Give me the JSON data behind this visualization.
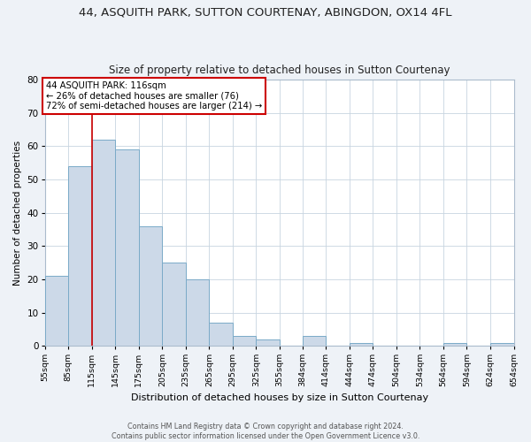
{
  "title": "44, ASQUITH PARK, SUTTON COURTENAY, ABINGDON, OX14 4FL",
  "subtitle": "Size of property relative to detached houses in Sutton Courtenay",
  "xlabel": "Distribution of detached houses by size in Sutton Courtenay",
  "ylabel": "Number of detached properties",
  "bar_values": [
    21,
    54,
    62,
    59,
    36,
    25,
    20,
    7,
    3,
    2,
    0,
    3,
    0,
    1,
    0,
    0,
    0,
    1,
    0,
    1
  ],
  "bin_labels": [
    "55sqm",
    "85sqm",
    "115sqm",
    "145sqm",
    "175sqm",
    "205sqm",
    "235sqm",
    "265sqm",
    "295sqm",
    "325sqm",
    "355sqm",
    "384sqm",
    "414sqm",
    "444sqm",
    "474sqm",
    "504sqm",
    "534sqm",
    "564sqm",
    "594sqm",
    "624sqm",
    "654sqm"
  ],
  "bar_left_edges": [
    55,
    85,
    115,
    145,
    175,
    205,
    235,
    265,
    295,
    325,
    355,
    384,
    414,
    444,
    474,
    504,
    534,
    564,
    594,
    624
  ],
  "bar_widths": [
    30,
    30,
    30,
    30,
    30,
    30,
    30,
    30,
    30,
    30,
    29,
    30,
    30,
    30,
    30,
    30,
    30,
    30,
    30,
    30
  ],
  "property_line_x": 115,
  "bar_color": "#ccd9e8",
  "bar_edge_color": "#7aaac8",
  "property_line_color": "#cc0000",
  "annotation_text": "44 ASQUITH PARK: 116sqm\n← 26% of detached houses are smaller (76)\n72% of semi-detached houses are larger (214) →",
  "annotation_box_color": "#ffffff",
  "annotation_box_edge": "#cc0000",
  "ylim": [
    0,
    80
  ],
  "yticks": [
    0,
    10,
    20,
    30,
    40,
    50,
    60,
    70,
    80
  ],
  "footer_line1": "Contains HM Land Registry data © Crown copyright and database right 2024.",
  "footer_line2": "Contains public sector information licensed under the Open Government Licence v3.0.",
  "bg_color": "#eef2f7",
  "plot_bg_color": "#ffffff",
  "grid_color": "#c8d4e0"
}
